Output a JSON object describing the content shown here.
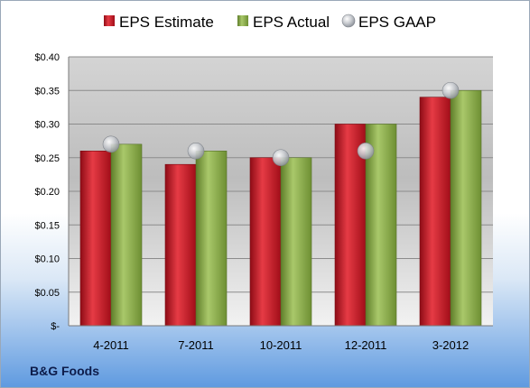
{
  "company": "B&G Foods",
  "chart_data": {
    "type": "bar",
    "categories": [
      "4-2011",
      "7-2011",
      "10-2011",
      "12-2011",
      "3-2012"
    ],
    "series": [
      {
        "name": "EPS Estimate",
        "values": [
          0.26,
          0.24,
          0.25,
          0.3,
          0.34
        ],
        "color": "#c8101e"
      },
      {
        "name": "EPS Actual",
        "values": [
          0.27,
          0.26,
          0.25,
          0.3,
          0.35
        ],
        "color": "#8fb04a"
      }
    ],
    "markers": {
      "name": "EPS GAAP",
      "values": [
        0.27,
        0.26,
        0.25,
        0.26,
        0.35
      ],
      "color": "#b8bcc4"
    },
    "ylim": [
      0,
      0.4
    ],
    "yticks": [
      0,
      0.05,
      0.1,
      0.15,
      0.2,
      0.25,
      0.3,
      0.35,
      0.4
    ],
    "ytick_labels": [
      "$-",
      "$0.05",
      "$0.10",
      "$0.15",
      "$0.20",
      "$0.25",
      "$0.30",
      "$0.35",
      "$0.40"
    ],
    "legend_position": "top",
    "grid": true
  }
}
